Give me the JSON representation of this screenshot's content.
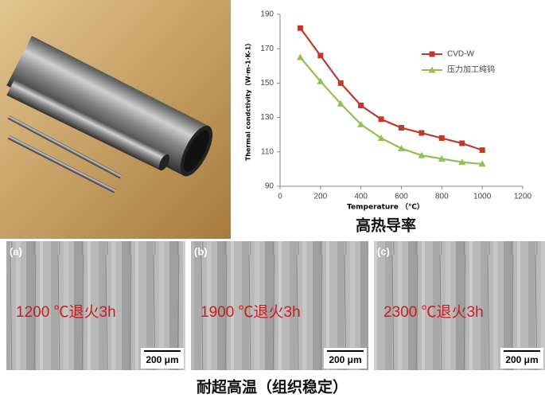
{
  "chart_data": {
    "type": "line",
    "xlabel": "Temperature （℃）",
    "ylabel": "Thermal condctivity（W·m-1·K-1）",
    "x": [
      100,
      200,
      300,
      400,
      500,
      600,
      700,
      800,
      900,
      1000
    ],
    "series": [
      {
        "name": "CVD-W",
        "color": "#c0392b",
        "marker": "square",
        "values": [
          182,
          166,
          150,
          137,
          129,
          124,
          121,
          118,
          115,
          111
        ]
      },
      {
        "name": "压力加工纯钨",
        "color": "#92c050",
        "marker": "triangle",
        "values": [
          165,
          151,
          138,
          126,
          118,
          112,
          108,
          106,
          104,
          103
        ]
      }
    ],
    "xlim": [
      0,
      1200
    ],
    "xticks": [
      0,
      200,
      400,
      600,
      800,
      1000,
      1200
    ],
    "ylim": [
      90,
      190
    ],
    "yticks": [
      90,
      110,
      130,
      150,
      170,
      190
    ],
    "legend": "upper-right"
  },
  "captions": {
    "chart": "高热导率",
    "micrographs": "耐超高温（组织稳定）"
  },
  "panels": [
    {
      "tag": "(a)",
      "label": "1200 ℃退火3h",
      "scale": "200 μm"
    },
    {
      "tag": "(b)",
      "label": "1900 ℃退火3h",
      "scale": "200 μm"
    },
    {
      "tag": "(c)",
      "label": "2300 ℃退火3h",
      "scale": "200 μm"
    }
  ]
}
